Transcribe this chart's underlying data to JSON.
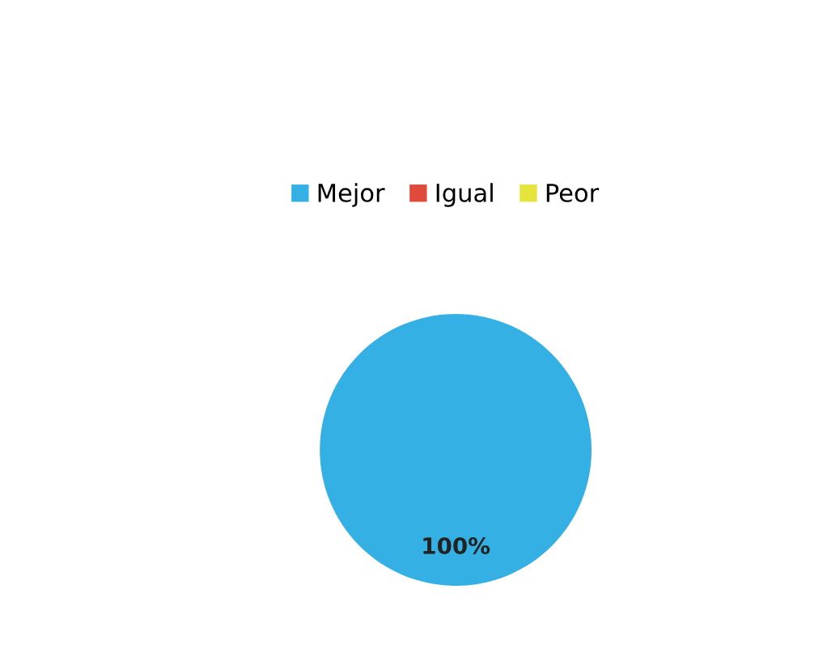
{
  "chart_data": {
    "type": "pie",
    "categories": [
      "Mejor",
      "Igual",
      "Peor"
    ],
    "values": [
      100,
      0,
      0
    ],
    "colors": [
      "#35b0e4",
      "#e04a3c",
      "#e4e43c"
    ],
    "value_labels": [
      "100%",
      null,
      null
    ],
    "legend": "top"
  }
}
